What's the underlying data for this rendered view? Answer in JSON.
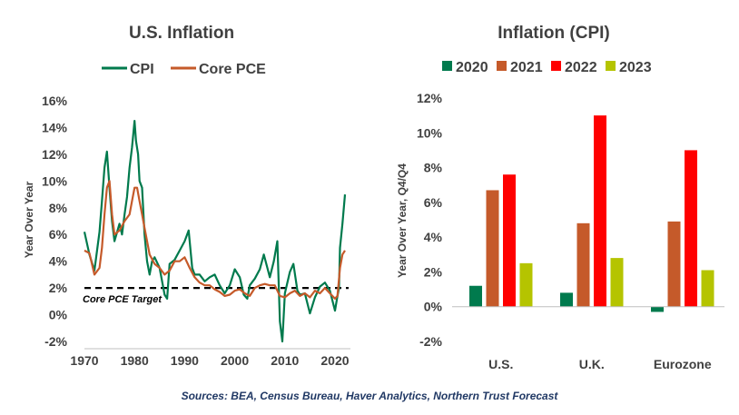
{
  "colors": {
    "cpi": "#007A4D",
    "core_pce": "#C55A2A",
    "y2020": "#007A4D",
    "y2021": "#C55A2A",
    "y2022": "#FF0000",
    "y2023": "#B5C400",
    "text": "#404040",
    "source": "#203864"
  },
  "source_note": "Sources: BEA, Census Bureau, Haver Analytics, Northern Trust Forecast",
  "chart_data": [
    {
      "type": "line",
      "title": "U.S. Inflation",
      "ylabel": "Year Over Year",
      "xlabel": "",
      "xlim": [
        1970,
        2022
      ],
      "ylim": [
        -2,
        16
      ],
      "x_ticks": [
        "1970",
        "1980",
        "1990",
        "2000",
        "2010",
        "2020"
      ],
      "y_ticks": [
        "-2%",
        "0%",
        "2%",
        "4%",
        "6%",
        "8%",
        "10%",
        "12%",
        "14%",
        "16%"
      ],
      "target": {
        "value": 2,
        "label": "Core PCE Target"
      },
      "series": [
        {
          "name": "CPI",
          "x": [
            1970,
            1971,
            1972,
            1973,
            1973.5,
            1974,
            1974.5,
            1975,
            1975.5,
            1976,
            1977,
            1977.5,
            1978,
            1978.5,
            1979,
            1979.5,
            1980,
            1980.3,
            1980.7,
            1981,
            1981.5,
            1982,
            1982.5,
            1983,
            1983.5,
            1984,
            1985,
            1986,
            1986.5,
            1987,
            1988,
            1989,
            1990,
            1990.8,
            1991.5,
            1992,
            1993,
            1994,
            1995,
            1996,
            1997,
            1998,
            1999,
            2000,
            2001,
            2001.8,
            2002.5,
            2003,
            2004,
            2005,
            2005.8,
            2006.5,
            2007,
            2007.8,
            2008.5,
            2009,
            2009.5,
            2010,
            2011,
            2011.7,
            2012.5,
            2013,
            2014,
            2015,
            2016,
            2017,
            2018,
            2019,
            2020,
            2020.4,
            2020.8,
            2021,
            2021.5,
            2022
          ],
          "values": [
            6.2,
            4.5,
            3.3,
            6.2,
            8.5,
            11.0,
            12.2,
            9.5,
            7.0,
            5.5,
            6.8,
            6.0,
            7.5,
            8.8,
            11.0,
            12.5,
            14.5,
            13.0,
            12.0,
            10.0,
            9.5,
            6.0,
            4.0,
            3.0,
            4.0,
            4.3,
            3.5,
            1.5,
            1.2,
            3.8,
            4.1,
            4.8,
            5.5,
            6.3,
            3.5,
            3.0,
            3.0,
            2.5,
            2.8,
            3.0,
            2.2,
            1.6,
            2.2,
            3.4,
            2.8,
            1.5,
            1.2,
            2.2,
            2.7,
            3.4,
            4.5,
            3.5,
            2.8,
            4.0,
            5.5,
            -0.5,
            -2.0,
            1.6,
            3.2,
            3.8,
            1.8,
            1.5,
            1.6,
            0.1,
            1.3,
            2.1,
            2.4,
            1.8,
            0.3,
            1.2,
            2.0,
            5.0,
            6.8,
            9.0
          ]
        },
        {
          "name": "Core PCE",
          "x": [
            1970,
            1971,
            1972,
            1973,
            1973.5,
            1974,
            1974.5,
            1975,
            1975.5,
            1976,
            1977,
            1978,
            1979,
            1979.5,
            1980,
            1980.5,
            1981,
            1981.5,
            1982,
            1983,
            1984,
            1985,
            1986,
            1987,
            1988,
            1989,
            1990,
            1991,
            1992,
            1993,
            1994,
            1995,
            1996,
            1997,
            1998,
            1999,
            2000,
            2001,
            2002,
            2003,
            2004,
            2005,
            2006,
            2007,
            2008,
            2009,
            2010,
            2011,
            2012,
            2013,
            2014,
            2015,
            2016,
            2017,
            2018,
            2019,
            2020,
            2020.5,
            2021,
            2021.5,
            2022
          ],
          "values": [
            4.8,
            4.6,
            3.0,
            3.5,
            5.0,
            7.5,
            9.5,
            10.0,
            7.5,
            6.0,
            6.3,
            7.0,
            7.5,
            8.5,
            9.5,
            9.5,
            8.5,
            7.5,
            6.5,
            4.5,
            3.8,
            3.5,
            3.0,
            3.3,
            4.0,
            4.0,
            4.3,
            3.5,
            2.8,
            2.4,
            2.2,
            2.2,
            1.9,
            1.7,
            1.4,
            1.5,
            1.8,
            1.9,
            1.6,
            1.4,
            2.0,
            2.2,
            2.3,
            2.2,
            2.2,
            1.4,
            1.3,
            1.6,
            1.8,
            1.4,
            1.6,
            1.3,
            1.8,
            1.6,
            2.0,
            1.6,
            1.2,
            1.4,
            3.5,
            4.5,
            4.8
          ]
        }
      ]
    },
    {
      "type": "bar",
      "title": "Inflation (CPI)",
      "ylabel": "Year Over Year, Q4/Q4",
      "xlabel": "",
      "ylim": [
        -2,
        12
      ],
      "y_ticks": [
        "-2%",
        "0%",
        "2%",
        "4%",
        "6%",
        "8%",
        "10%",
        "12%"
      ],
      "categories": [
        "U.S.",
        "U.K.",
        "Eurozone"
      ],
      "series": [
        {
          "name": "2020",
          "values": [
            1.2,
            0.8,
            -0.3
          ]
        },
        {
          "name": "2021",
          "values": [
            6.7,
            4.8,
            4.9
          ]
        },
        {
          "name": "2022",
          "values": [
            7.6,
            11.0,
            9.0
          ]
        },
        {
          "name": "2023",
          "values": [
            2.5,
            2.8,
            2.1
          ]
        }
      ]
    }
  ]
}
